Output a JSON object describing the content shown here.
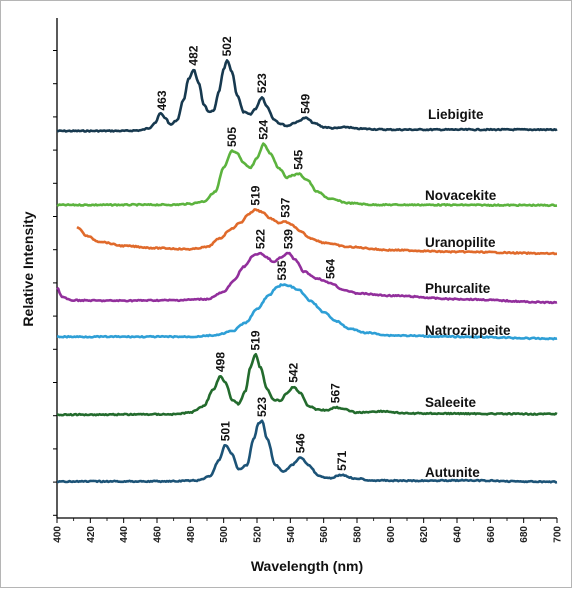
{
  "chart_data": {
    "type": "line",
    "xlabel": "Wavelength (nm)",
    "ylabel": "Relative Intensity",
    "xlim": [
      400,
      700
    ],
    "x_ticks": [
      400,
      420,
      440,
      460,
      480,
      500,
      520,
      540,
      560,
      580,
      600,
      620,
      640,
      660,
      680,
      700
    ],
    "grid": false,
    "series": [
      {
        "name": "Liebigite",
        "color": "#17394f",
        "points": [
          [
            400,
            1.3
          ],
          [
            440,
            1.35
          ],
          [
            450,
            1.6
          ],
          [
            455,
            2.5
          ],
          [
            459,
            5
          ],
          [
            462,
            9
          ],
          [
            465,
            7
          ],
          [
            468,
            4
          ],
          [
            472,
            6
          ],
          [
            476,
            15
          ],
          [
            479,
            24
          ],
          [
            482,
            28
          ],
          [
            485,
            22
          ],
          [
            488,
            13
          ],
          [
            491,
            9.5
          ],
          [
            494,
            10
          ],
          [
            497,
            18
          ],
          [
            500,
            28
          ],
          [
            502,
            32
          ],
          [
            505,
            27
          ],
          [
            508,
            17
          ],
          [
            512,
            9.5
          ],
          [
            516,
            8.5
          ],
          [
            519,
            11
          ],
          [
            523,
            16
          ],
          [
            526,
            12
          ],
          [
            530,
            6.5
          ],
          [
            534,
            4.5
          ],
          [
            538,
            3.5
          ],
          [
            543,
            5
          ],
          [
            549,
            7
          ],
          [
            555,
            4.5
          ],
          [
            560,
            3
          ],
          [
            566,
            2.5
          ],
          [
            574,
            3
          ],
          [
            580,
            2.3
          ],
          [
            600,
            1.9
          ],
          [
            700,
            1.9
          ]
        ],
        "peaks": [
          463,
          482,
          502,
          523,
          549
        ]
      },
      {
        "name": "Novacekite",
        "color": "#5cb33e",
        "points": [
          [
            400,
            2.5
          ],
          [
            470,
            2.6
          ],
          [
            480,
            3
          ],
          [
            488,
            4
          ],
          [
            495,
            8
          ],
          [
            500,
            18
          ],
          [
            505,
            25
          ],
          [
            508,
            24
          ],
          [
            512,
            20
          ],
          [
            516,
            18
          ],
          [
            520,
            22
          ],
          [
            524,
            28
          ],
          [
            528,
            24
          ],
          [
            533,
            18
          ],
          [
            538,
            14
          ],
          [
            542,
            15
          ],
          [
            545,
            15.5
          ],
          [
            550,
            13
          ],
          [
            556,
            8
          ],
          [
            564,
            5
          ],
          [
            575,
            3.3
          ],
          [
            590,
            2.6
          ],
          [
            700,
            2.4
          ]
        ],
        "peaks": [
          505,
          524,
          545
        ]
      },
      {
        "name": "Uranopilite",
        "color": "#e06a2b",
        "points": [
          [
            412,
            14
          ],
          [
            418,
            10
          ],
          [
            425,
            7.5
          ],
          [
            440,
            5.5
          ],
          [
            460,
            4.5
          ],
          [
            480,
            4
          ],
          [
            490,
            5
          ],
          [
            498,
            9
          ],
          [
            504,
            13
          ],
          [
            510,
            16
          ],
          [
            515,
            20
          ],
          [
            519,
            22
          ],
          [
            523,
            21
          ],
          [
            528,
            18
          ],
          [
            533,
            16
          ],
          [
            537,
            16.5
          ],
          [
            541,
            15
          ],
          [
            546,
            12
          ],
          [
            552,
            9
          ],
          [
            560,
            7
          ],
          [
            575,
            5
          ],
          [
            600,
            3.6
          ],
          [
            640,
            2.8
          ],
          [
            700,
            2
          ]
        ],
        "peaks": [
          519,
          537
        ]
      },
      {
        "name": "Phurcalite",
        "color": "#922f9c",
        "points": [
          [
            400,
            8
          ],
          [
            403,
            4
          ],
          [
            408,
            2.5
          ],
          [
            430,
            2.3
          ],
          [
            470,
            2.5
          ],
          [
            490,
            3
          ],
          [
            500,
            6
          ],
          [
            506,
            11
          ],
          [
            512,
            17
          ],
          [
            518,
            22
          ],
          [
            522,
            23
          ],
          [
            526,
            21
          ],
          [
            530,
            19
          ],
          [
            534,
            21
          ],
          [
            539,
            23
          ],
          [
            543,
            20
          ],
          [
            548,
            15
          ],
          [
            556,
            12
          ],
          [
            564,
            10
          ],
          [
            572,
            7
          ],
          [
            580,
            5.5
          ],
          [
            600,
            4.5
          ],
          [
            640,
            3
          ],
          [
            700,
            1.5
          ]
        ],
        "peaks": [
          522,
          539,
          564
        ]
      },
      {
        "name": "Natrozippeite",
        "color": "#2e9fd6",
        "points": [
          [
            400,
            3
          ],
          [
            480,
            3
          ],
          [
            495,
            3.5
          ],
          [
            505,
            5
          ],
          [
            513,
            8
          ],
          [
            520,
            13
          ],
          [
            527,
            18
          ],
          [
            532,
            21
          ],
          [
            535,
            22
          ],
          [
            539,
            21.5
          ],
          [
            545,
            20
          ],
          [
            552,
            16
          ],
          [
            560,
            12
          ],
          [
            568,
            8.5
          ],
          [
            575,
            6
          ],
          [
            585,
            4.5
          ],
          [
            600,
            3.5
          ],
          [
            640,
            3
          ],
          [
            700,
            2.3
          ]
        ],
        "peaks": [
          535
        ]
      },
      {
        "name": "Saleeite",
        "color": "#236b2d",
        "points": [
          [
            400,
            2
          ],
          [
            470,
            2.2
          ],
          [
            480,
            3
          ],
          [
            488,
            6
          ],
          [
            494,
            14
          ],
          [
            498,
            20
          ],
          [
            501,
            17
          ],
          [
            505,
            9
          ],
          [
            509,
            7
          ],
          [
            513,
            13
          ],
          [
            516,
            24
          ],
          [
            519,
            30
          ],
          [
            522,
            24
          ],
          [
            526,
            14
          ],
          [
            530,
            9
          ],
          [
            534,
            8.5
          ],
          [
            538,
            12
          ],
          [
            542,
            15
          ],
          [
            546,
            12
          ],
          [
            551,
            6
          ],
          [
            556,
            4.5
          ],
          [
            562,
            4
          ],
          [
            567,
            5.5
          ],
          [
            572,
            4.5
          ],
          [
            580,
            3
          ],
          [
            595,
            3.6
          ],
          [
            610,
            2.6
          ],
          [
            700,
            2.3
          ]
        ],
        "peaks": [
          498,
          519,
          542,
          567
        ]
      },
      {
        "name": "Autunite",
        "color": "#1c5377",
        "points": [
          [
            400,
            2.5
          ],
          [
            470,
            2.6
          ],
          [
            485,
            3
          ],
          [
            492,
            5
          ],
          [
            497,
            12
          ],
          [
            501,
            19
          ],
          [
            505,
            15
          ],
          [
            509,
            8
          ],
          [
            514,
            10
          ],
          [
            518,
            22
          ],
          [
            521,
            29
          ],
          [
            523,
            30
          ],
          [
            526,
            22
          ],
          [
            531,
            10
          ],
          [
            536,
            7
          ],
          [
            541,
            10
          ],
          [
            546,
            13.5
          ],
          [
            551,
            10
          ],
          [
            557,
            5
          ],
          [
            563,
            4
          ],
          [
            571,
            5.5
          ],
          [
            578,
            4
          ],
          [
            590,
            3
          ],
          [
            610,
            2.8
          ],
          [
            640,
            3
          ],
          [
            700,
            2.3
          ]
        ],
        "peaks": [
          501,
          523,
          546,
          571
        ]
      }
    ]
  }
}
